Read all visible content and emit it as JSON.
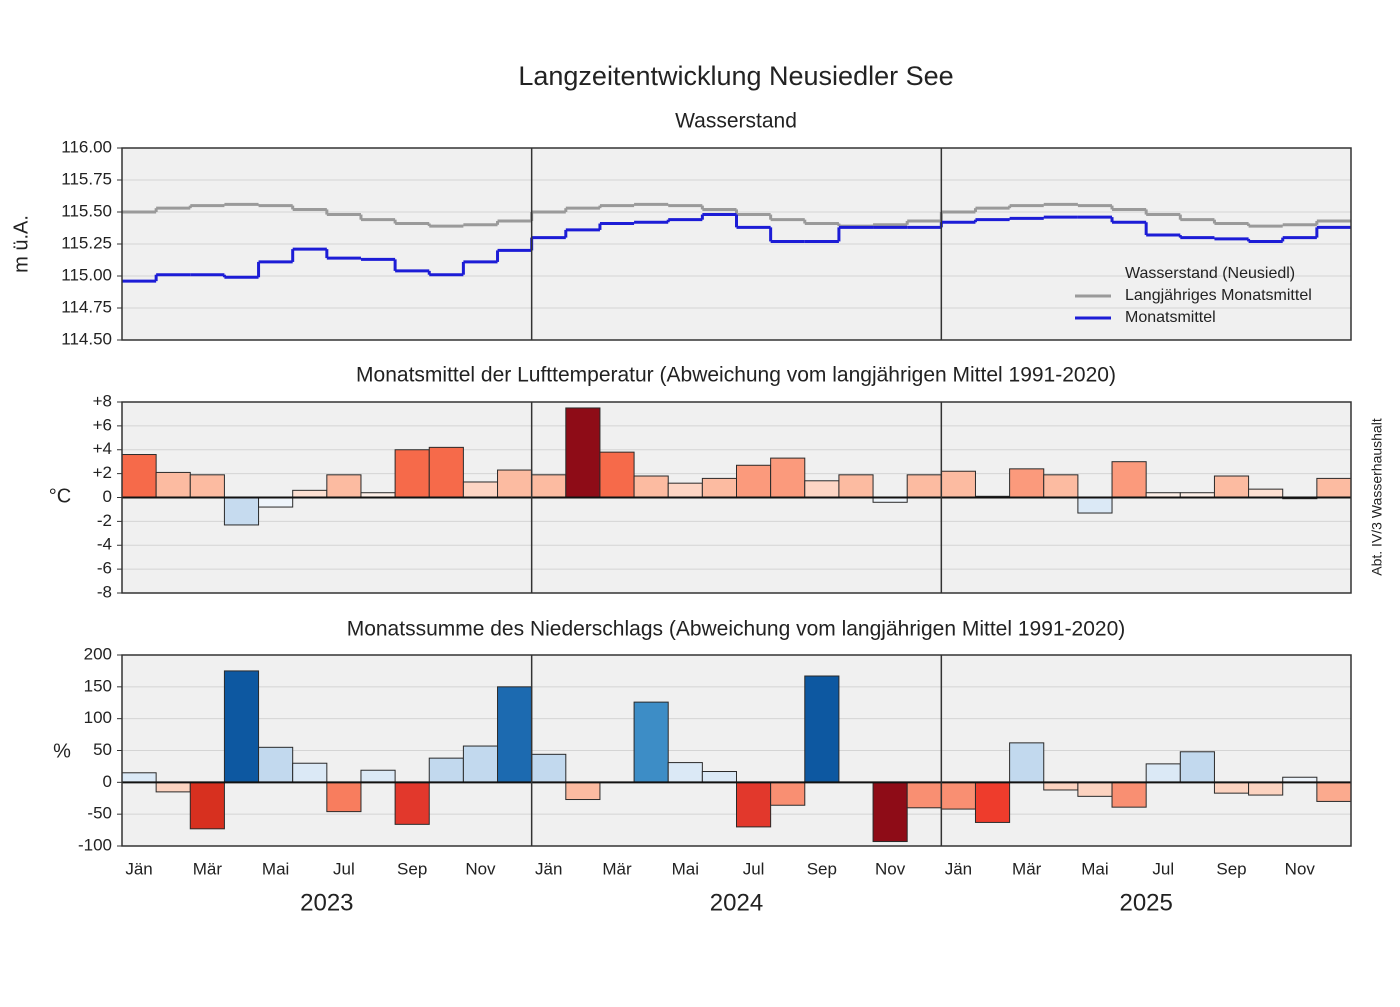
{
  "credit": "Abt. IV/3 Wasserhaushalt",
  "chart_data": [
    {
      "type": "step",
      "title": "Langzeitentwicklung Neusiedler See",
      "subtitle": "Wasserstand",
      "ylabel": "m ü.A.",
      "ylim": [
        114.5,
        116.0
      ],
      "yticks": [
        {
          "value": 116.0,
          "label": "116.00"
        },
        {
          "value": 115.75,
          "label": "115.75"
        },
        {
          "value": 115.5,
          "label": "115.50"
        },
        {
          "value": 115.25,
          "label": "115.25"
        },
        {
          "value": 115.0,
          "label": "115.00"
        },
        {
          "value": 114.75,
          "label": "114.75"
        },
        {
          "value": 114.5,
          "label": "114.50"
        }
      ],
      "grid": true,
      "legend": "lower right",
      "legend_title": "Wasserstand (Neusiedl)",
      "series": [
        {
          "name": "Langjähriges Monatsmittel",
          "color": "#9a9a9a",
          "values": [
            115.5,
            115.53,
            115.55,
            115.56,
            115.55,
            115.52,
            115.48,
            115.44,
            115.41,
            115.39,
            115.4,
            115.43,
            115.5,
            115.53,
            115.55,
            115.56,
            115.55,
            115.52,
            115.48,
            115.44,
            115.41,
            115.39,
            115.4,
            115.43,
            115.5,
            115.53,
            115.55,
            115.56,
            115.55,
            115.52,
            115.48,
            115.44,
            115.41,
            115.39,
            115.4,
            115.43
          ]
        },
        {
          "name": "Monatsmittel",
          "color": "#1c1cd6",
          "values": [
            114.96,
            115.01,
            115.01,
            114.99,
            115.11,
            115.21,
            115.14,
            115.13,
            115.04,
            115.01,
            115.11,
            115.2,
            115.3,
            115.36,
            115.41,
            115.42,
            115.44,
            115.48,
            115.38,
            115.27,
            115.27,
            115.38,
            115.38,
            115.38,
            115.42,
            115.44,
            115.45,
            115.46,
            115.46,
            115.42,
            115.32,
            115.3,
            115.29,
            115.27,
            115.3,
            115.38
          ]
        }
      ]
    },
    {
      "type": "bar",
      "subtitle": "Monatsmittel der Lufttemperatur (Abweichung vom langjährigen Mittel 1991-2020)",
      "ylabel": "°C",
      "ylim": [
        -8,
        8
      ],
      "yticks": [
        {
          "value": 8,
          "label": "+8"
        },
        {
          "value": 6,
          "label": "+6"
        },
        {
          "value": 4,
          "label": "+4"
        },
        {
          "value": 2,
          "label": "+2"
        },
        0,
        -2,
        -4,
        -6,
        -8
      ],
      "grid": true,
      "values": [
        3.6,
        2.1,
        1.9,
        -2.3,
        -0.8,
        0.6,
        1.9,
        0.4,
        4.0,
        4.2,
        1.3,
        2.3,
        1.9,
        7.5,
        3.8,
        1.8,
        1.2,
        1.6,
        2.7,
        3.3,
        1.4,
        1.9,
        -0.4,
        1.9,
        2.2,
        0.1,
        2.4,
        1.9,
        -1.3,
        3.0,
        0.4,
        0.4,
        1.8,
        0.7,
        -0.1,
        1.6
      ],
      "colors": [
        "#f66a4a",
        "#fcbba1",
        "#fcbba1",
        "#c6dbef",
        "#eff5fb",
        "#fde0d2",
        "#fcbba1",
        "#feefe7",
        "#f66a4a",
        "#f66a4a",
        "#fdd5c4",
        "#fcbba1",
        "#fcbba1",
        "#8e0c17",
        "#f66a4a",
        "#fcbba1",
        "#fdd5c4",
        "#fcbba1",
        "#fb9a7c",
        "#fb9a7c",
        "#fdd5c4",
        "#fcbba1",
        "#eff5fb",
        "#fcbba1",
        "#fcbba1",
        "#feefe7",
        "#fb9a7c",
        "#fcbba1",
        "#dbe9f6",
        "#fb9a7c",
        "#feefe7",
        "#feefe7",
        "#fcbba1",
        "#fde0d2",
        "#eff5fb",
        "#fcbba1"
      ]
    },
    {
      "type": "bar",
      "subtitle": "Monatssumme des Niederschlags (Abweichung vom langjährigen Mittel 1991-2020)",
      "ylabel": "%",
      "ylim": [
        -100,
        200
      ],
      "yticks": [
        200,
        150,
        100,
        50,
        0,
        -50,
        -100
      ],
      "grid": true,
      "categories": [
        "Jän",
        null,
        "Mär",
        null,
        "Mai",
        null,
        "Jul",
        null,
        "Sep",
        null,
        "Nov",
        null,
        "Jän",
        null,
        "Mär",
        null,
        "Mai",
        null,
        "Jul",
        null,
        "Sep",
        null,
        "Nov",
        null,
        "Jän",
        null,
        "Mär",
        null,
        "Mai",
        null,
        "Jul",
        null,
        "Sep",
        null,
        "Nov",
        null
      ],
      "years": [
        "2023",
        "2024",
        "2025"
      ],
      "values": [
        15,
        -15,
        -73,
        175,
        55,
        30,
        -46,
        19,
        -66,
        38,
        57,
        150,
        44,
        -27,
        0,
        126,
        31,
        17,
        -70,
        -36,
        167,
        0,
        -93,
        -40,
        -42,
        -63,
        62,
        -12,
        -22,
        -39,
        29,
        48,
        -17,
        -20,
        8,
        -30
      ],
      "colors": [
        "#dbe9f6",
        "#fcd3c0",
        "#d7301f",
        "#0d58a1",
        "#c2d9ee",
        "#dbe9f6",
        "#f87d5e",
        "#dbe9f6",
        "#e2382c",
        "#c2d9ee",
        "#c2d9ee",
        "#1c6ab0",
        "#c2d9ee",
        "#fcbba1",
        "#f7fbff",
        "#3d8dc6",
        "#dbe9f6",
        "#dbe9f6",
        "#e2382c",
        "#f98f72",
        "#0d58a1",
        "#f7fbff",
        "#8e0c17",
        "#f98f72",
        "#f98f72",
        "#ee3c2c",
        "#c2d9ee",
        "#fcd3c0",
        "#fcd3c0",
        "#f98f72",
        "#dbe9f6",
        "#c2d9ee",
        "#fcd3c0",
        "#fcd3c0",
        "#edf4fb",
        "#fbaa8e"
      ]
    }
  ]
}
